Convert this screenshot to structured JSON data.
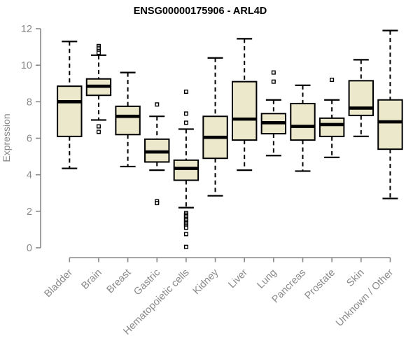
{
  "chart_data": {
    "type": "boxplot",
    "title": "ENSG00000175906 - ARL4D",
    "ylabel": "Expression",
    "ylim": [
      0,
      12
    ],
    "yticks": [
      0,
      2,
      4,
      6,
      8,
      10,
      12
    ],
    "grid": false,
    "colors": {
      "box_fill": "#ece8cc",
      "box_stroke": "#000000",
      "axis": "#898989",
      "tick_text": "#898989",
      "title_text": "#000000"
    },
    "categories": [
      "Bladder",
      "Brain",
      "Breast",
      "Gastric",
      "Hematopoietic cells",
      "Kidney",
      "Liver",
      "Lung",
      "Pancreas",
      "Prostate",
      "Skin",
      "Unknown / Other"
    ],
    "series": [
      {
        "category": "Bladder",
        "low": 4.35,
        "q1": 6.1,
        "median": 8.0,
        "q3": 8.85,
        "high": 11.3,
        "outliers": []
      },
      {
        "category": "Brain",
        "low": 7.0,
        "q1": 8.35,
        "median": 8.85,
        "q3": 9.25,
        "high": 10.55,
        "outliers": [
          11.05,
          10.95,
          10.86,
          10.77,
          10.68,
          6.65,
          6.35
        ]
      },
      {
        "category": "Breast",
        "low": 4.45,
        "q1": 6.2,
        "median": 7.2,
        "q3": 7.75,
        "high": 9.6,
        "outliers": []
      },
      {
        "category": "Gastric",
        "low": 4.25,
        "q1": 4.7,
        "median": 5.25,
        "q3": 5.95,
        "high": 7.2,
        "outliers": [
          7.85,
          2.55,
          2.45
        ]
      },
      {
        "category": "Hematopoietic cells",
        "low": 2.2,
        "q1": 3.7,
        "median": 4.35,
        "q3": 4.8,
        "high": 6.5,
        "outliers": [
          8.55,
          7.35,
          6.85,
          1.9,
          1.82,
          1.74,
          1.66,
          1.58,
          1.5,
          1.42,
          1.34,
          1.26,
          1.18,
          1.1,
          0.75,
          0.05
        ]
      },
      {
        "category": "Kidney",
        "low": 2.85,
        "q1": 4.9,
        "median": 6.05,
        "q3": 7.2,
        "high": 10.4,
        "outliers": []
      },
      {
        "category": "Liver",
        "low": 4.25,
        "q1": 5.9,
        "median": 7.05,
        "q3": 9.1,
        "high": 11.45,
        "outliers": []
      },
      {
        "category": "Lung",
        "low": 5.05,
        "q1": 6.25,
        "median": 6.85,
        "q3": 7.35,
        "high": 8.1,
        "outliers": [
          9.6,
          9.1
        ]
      },
      {
        "category": "Pancreas",
        "low": 4.2,
        "q1": 5.9,
        "median": 6.65,
        "q3": 7.9,
        "high": 8.9,
        "outliers": []
      },
      {
        "category": "Prostate",
        "low": 4.95,
        "q1": 6.1,
        "median": 6.75,
        "q3": 7.1,
        "high": 8.1,
        "outliers": [
          9.2
        ]
      },
      {
        "category": "Skin",
        "low": 6.1,
        "q1": 7.25,
        "median": 7.65,
        "q3": 9.15,
        "high": 10.3,
        "outliers": []
      },
      {
        "category": "Unknown / Other",
        "low": 2.7,
        "q1": 5.4,
        "median": 6.9,
        "q3": 8.1,
        "high": 11.9,
        "outliers": []
      }
    ]
  }
}
